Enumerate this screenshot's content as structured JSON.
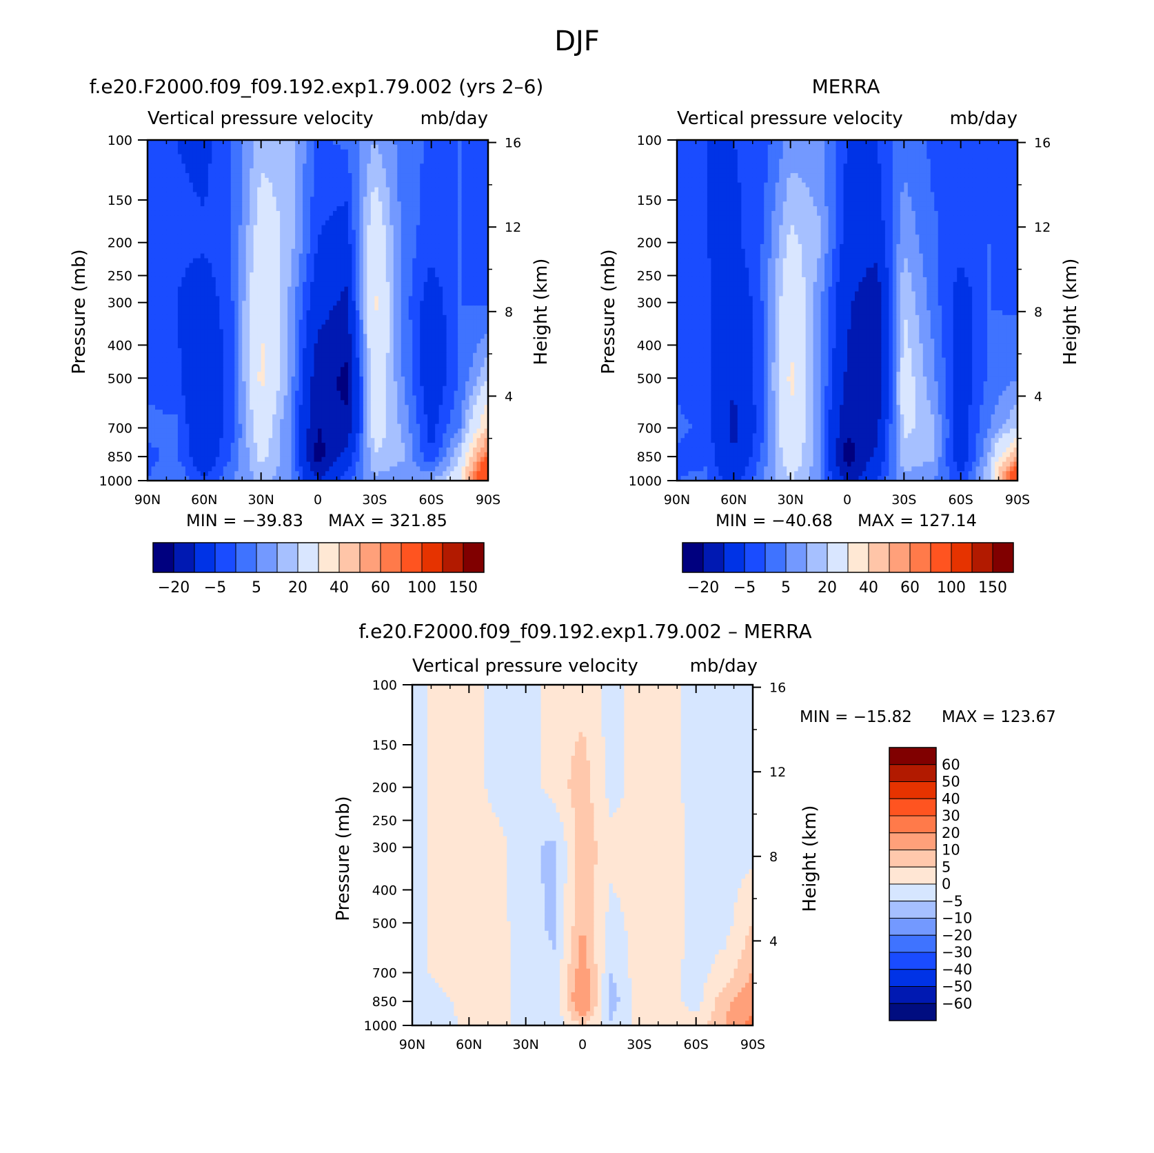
{
  "page_title": "DJF",
  "colors": {
    "model_obs_scale": [
      "#00007f",
      "#0019b2",
      "#0033e6",
      "#1a4cff",
      "#3f73ff",
      "#7399ff",
      "#a6c0ff",
      "#d9e6ff",
      "#ffe8d4",
      "#ffc5a8",
      "#ffa07a",
      "#ff7a4a",
      "#ff5420",
      "#e63300",
      "#b21a00",
      "#800000"
    ],
    "diff_scale": [
      "#000d80",
      "#0019b2",
      "#0033e6",
      "#1a4cff",
      "#3f73ff",
      "#7399ff",
      "#a6c0ff",
      "#d6e6ff",
      "#ffe6d4",
      "#ffc8ac",
      "#ffa07a",
      "#ff7a4a",
      "#ff5420",
      "#e63300",
      "#b21a00",
      "#800000"
    ]
  },
  "chart_data": [
    {
      "id": "model",
      "type": "heatmap",
      "title": "f.e20.F2000.f09_f09.192.exp1.79.002 (yrs 2–6)",
      "subtitle_left": "Vertical pressure velocity",
      "subtitle_right": "mb/day",
      "ylabel": "Pressure (mb)",
      "y2label": "Height (km)",
      "x_ticks": [
        "90N",
        "60N",
        "30N",
        "0",
        "30S",
        "60S",
        "90S"
      ],
      "y_ticks": [
        "100",
        "150",
        "200",
        "250",
        "300",
        "400",
        "500",
        "700",
        "850",
        "1000"
      ],
      "y2_ticks": [
        "16",
        "12",
        "8",
        "4"
      ],
      "y_log_scale": true,
      "xlim": [
        90,
        -90
      ],
      "ylim": [
        1000,
        100
      ],
      "min_label": "MIN = −39.83",
      "max_label": "MAX = 321.85",
      "colorbar": {
        "orientation": "horizontal",
        "labels": [
          "−20",
          "−5",
          "5",
          "20",
          "40",
          "60",
          "100",
          "150"
        ]
      },
      "x": [
        90,
        75,
        60,
        45,
        30,
        15,
        0,
        -15,
        -30,
        -45,
        -60,
        -75,
        -90
      ],
      "levels": [
        100,
        200,
        300,
        500,
        700,
        850,
        1000
      ],
      "values": [
        [
          -8,
          -10,
          -12,
          -5,
          8,
          8,
          -6,
          -4,
          5,
          -2,
          -6,
          -5,
          -6
        ],
        [
          -10,
          -8,
          -9,
          -5,
          15,
          8,
          -10,
          -14,
          18,
          -2,
          -8,
          -5,
          -6
        ],
        [
          -8,
          -10,
          -15,
          -5,
          20,
          4,
          -16,
          -22,
          22,
          -2,
          -14,
          -5,
          -6
        ],
        [
          -6,
          -8,
          -20,
          -6,
          22,
          4,
          -26,
          -32,
          18,
          0,
          -16,
          -5,
          10
        ],
        [
          -4,
          -4,
          -18,
          -6,
          16,
          0,
          -30,
          -28,
          14,
          4,
          -12,
          0,
          30
        ],
        [
          -6,
          -4,
          -16,
          -4,
          12,
          2,
          -34,
          -16,
          10,
          6,
          -10,
          10,
          60
        ],
        [
          -5,
          0,
          -10,
          0,
          6,
          2,
          -20,
          -6,
          4,
          0,
          5,
          15,
          100
        ]
      ]
    },
    {
      "id": "obs",
      "type": "heatmap",
      "title": "MERRA",
      "subtitle_left": "Vertical pressure velocity",
      "subtitle_right": "mb/day",
      "ylabel": "Pressure (mb)",
      "y2label": "Height (km)",
      "x_ticks": [
        "90N",
        "60N",
        "30N",
        "0",
        "30S",
        "60S",
        "90S"
      ],
      "y_ticks": [
        "100",
        "150",
        "200",
        "250",
        "300",
        "400",
        "500",
        "700",
        "850",
        "1000"
      ],
      "y2_ticks": [
        "16",
        "12",
        "8",
        "4"
      ],
      "y_log_scale": true,
      "xlim": [
        90,
        -90
      ],
      "ylim": [
        1000,
        100
      ],
      "min_label": "MIN = −40.68",
      "max_label": "MAX = 127.14",
      "colorbar": {
        "orientation": "horizontal",
        "labels": [
          "−20",
          "−5",
          "5",
          "20",
          "40",
          "60",
          "100",
          "150"
        ]
      },
      "x": [
        90,
        75,
        60,
        45,
        30,
        15,
        0,
        -15,
        -30,
        -45,
        -60,
        -75,
        -90
      ],
      "levels": [
        100,
        200,
        300,
        500,
        700,
        850,
        1000
      ],
      "values": [
        [
          -8,
          -10,
          -10,
          -8,
          2,
          2,
          -10,
          -10,
          -2,
          -6,
          -6,
          -6,
          -6
        ],
        [
          -8,
          -10,
          -12,
          -5,
          12,
          6,
          -14,
          -16,
          4,
          -4,
          -8,
          -5,
          -6
        ],
        [
          -6,
          -8,
          -18,
          -5,
          18,
          2,
          -18,
          -28,
          10,
          -2,
          -14,
          -5,
          -6
        ],
        [
          -6,
          -8,
          -20,
          -6,
          22,
          2,
          -22,
          -30,
          14,
          2,
          -14,
          -4,
          0
        ],
        [
          -4,
          -6,
          -22,
          -6,
          20,
          0,
          -28,
          -24,
          12,
          6,
          -14,
          0,
          10
        ],
        [
          -6,
          -6,
          -20,
          -4,
          16,
          2,
          -36,
          -18,
          8,
          6,
          -16,
          6,
          40
        ],
        [
          -5,
          -4,
          -14,
          0,
          10,
          2,
          -24,
          -10,
          4,
          0,
          -8,
          10,
          90
        ]
      ]
    },
    {
      "id": "diff",
      "type": "heatmap",
      "title": "f.e20.F2000.f09_f09.192.exp1.79.002 – MERRA",
      "subtitle_left": "Vertical pressure velocity",
      "subtitle_right": "mb/day",
      "ylabel": "Pressure (mb)",
      "y2label": "Height (km)",
      "x_ticks": [
        "90N",
        "60N",
        "30N",
        "0",
        "30S",
        "60S",
        "90S"
      ],
      "y_ticks": [
        "100",
        "150",
        "200",
        "250",
        "300",
        "400",
        "500",
        "700",
        "850",
        "1000"
      ],
      "y2_ticks": [
        "16",
        "12",
        "8",
        "4"
      ],
      "y_log_scale": true,
      "xlim": [
        90,
        -90
      ],
      "ylim": [
        1000,
        100
      ],
      "min_label": "MIN = −15.82",
      "max_label": "MAX = 123.67",
      "colorbar": {
        "orientation": "vertical",
        "labels": [
          "60",
          "50",
          "40",
          "30",
          "20",
          "10",
          "5",
          "0",
          "−5",
          "−10",
          "−20",
          "−30",
          "−40",
          "−50",
          "−60"
        ]
      },
      "x": [
        90,
        75,
        60,
        45,
        30,
        15,
        0,
        -15,
        -30,
        -45,
        -60,
        -75,
        -90
      ],
      "levels": [
        100,
        200,
        300,
        500,
        700,
        850,
        1000
      ],
      "values": [
        [
          -2,
          2,
          2,
          -2,
          -2,
          2,
          3,
          -2,
          2,
          2,
          -3,
          -2,
          -2
        ],
        [
          -2,
          2,
          3,
          -2,
          -3,
          2,
          8,
          -2,
          2,
          2,
          -2,
          -2,
          -2
        ],
        [
          -2,
          2,
          3,
          2,
          -4,
          -6,
          8,
          2,
          2,
          3,
          -2,
          -2,
          -2
        ],
        [
          -2,
          2,
          2,
          2,
          -3,
          -6,
          10,
          -2,
          2,
          3,
          -2,
          -2,
          5
        ],
        [
          -3,
          2,
          3,
          2,
          -3,
          -4,
          14,
          -5,
          3,
          2,
          -2,
          2,
          10
        ],
        [
          -4,
          -2,
          3,
          2,
          -2,
          -4,
          18,
          -8,
          2,
          2,
          -2,
          8,
          15
        ],
        [
          -5,
          -3,
          2,
          2,
          -2,
          -4,
          6,
          -4,
          2,
          2,
          2,
          10,
          25
        ]
      ]
    }
  ]
}
